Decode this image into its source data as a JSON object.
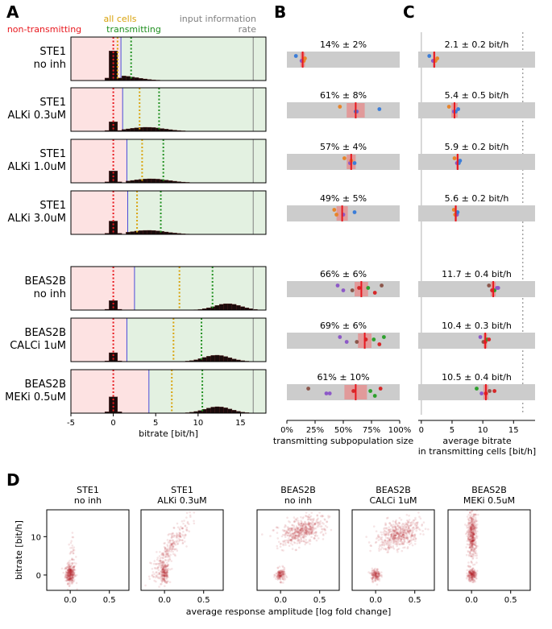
{
  "panel_letters": {
    "a": "A",
    "b": "B",
    "c": "C",
    "d": "D"
  },
  "legend": {
    "non_transmitting": "non-transmitting",
    "all_cells": "all cells",
    "transmitting": "transmitting",
    "input_information_line1": "input information",
    "input_information_line2": "rate"
  },
  "colors": {
    "non_transmitting": "#e8181e",
    "all_cells": "#d9a20b",
    "transmitting": "#1f8f1f",
    "input_rate": "#7f7f7f",
    "bg_red": "#fde2e2",
    "bg_green": "#e3f1e1",
    "gray_band": "#cccccc",
    "blue_line": "#4b4bd8",
    "hist": "#1a0b0b",
    "scatter": "#b5202a"
  },
  "chart_data": [
    {
      "id": "A",
      "type": "bar",
      "xlabel": "bitrate [bit/h]",
      "xlim": [
        -5,
        18
      ],
      "xticks": [
        "-5",
        "0",
        "5",
        "10",
        "15"
      ],
      "xtick_values": [
        -5,
        0,
        5,
        10,
        15
      ],
      "input_rate": 16.5,
      "rows": [
        {
          "label1": "STE1",
          "label2": "no inh",
          "threshold": 0.9,
          "non_mean": 0.0,
          "all_mean": 0.5,
          "trans_mean": 2.1,
          "hist_peak": 1.0
        },
        {
          "label1": "STE1",
          "label2": "ALKi 0.3uM",
          "threshold": 1.1,
          "non_mean": 0.0,
          "all_mean": 3.1,
          "trans_mean": 5.4,
          "hist_peak": 0.32
        },
        {
          "label1": "STE1",
          "label2": "ALKi 1.0uM",
          "threshold": 1.6,
          "non_mean": 0.0,
          "all_mean": 3.4,
          "trans_mean": 5.9,
          "hist_peak": 0.4
        },
        {
          "label1": "STE1",
          "label2": "ALKi 3.0uM",
          "threshold": 1.7,
          "non_mean": 0.0,
          "all_mean": 2.8,
          "trans_mean": 5.6,
          "hist_peak": 0.45
        },
        {
          "label1": "BEAS2B",
          "label2": "no inh",
          "threshold": 2.5,
          "non_mean": 0.0,
          "all_mean": 7.8,
          "trans_mean": 11.7,
          "hist_peak": 0.32
        },
        {
          "label1": "BEAS2B",
          "label2": "CALCi 1uM",
          "threshold": 1.6,
          "non_mean": 0.0,
          "all_mean": 7.1,
          "trans_mean": 10.4,
          "hist_peak": 0.3
        },
        {
          "label1": "BEAS2B",
          "label2": "MEKi 0.5uM",
          "threshold": 4.2,
          "non_mean": 0.0,
          "all_mean": 6.9,
          "trans_mean": 10.5,
          "hist_peak": 0.55
        }
      ]
    },
    {
      "id": "B",
      "type": "scatter",
      "xlabel": "transmitting subpopulation size",
      "xlim": [
        0,
        100
      ],
      "xticks": [
        "0%",
        "25%",
        "50%",
        "75%",
        "100%"
      ],
      "xtick_values": [
        0,
        25,
        50,
        75,
        100
      ],
      "rows": [
        {
          "text": "14% ± 2%",
          "mean": 14,
          "ci": 2,
          "points": [
            {
              "v": 8,
              "c": "#3b7dd8"
            },
            {
              "v": 13,
              "c": "#8d59c7"
            },
            {
              "v": 15,
              "c": "#e8842a"
            },
            {
              "v": 16,
              "c": "#e8842a"
            }
          ]
        },
        {
          "text": "61% ± 8%",
          "mean": 61,
          "ci": 8,
          "points": [
            {
              "v": 47,
              "c": "#e8842a"
            },
            {
              "v": 62,
              "c": "#8d59c7"
            },
            {
              "v": 61,
              "c": "#3b7dd8"
            },
            {
              "v": 82,
              "c": "#3b7dd8"
            }
          ]
        },
        {
          "text": "57% ± 4%",
          "mean": 57,
          "ci": 4,
          "points": [
            {
              "v": 51,
              "c": "#e8842a"
            },
            {
              "v": 56,
              "c": "#8d59c7"
            },
            {
              "v": 60,
              "c": "#3b7dd8"
            },
            {
              "v": 57,
              "c": "#e8842a"
            }
          ]
        },
        {
          "text": "49% ± 5%",
          "mean": 49,
          "ci": 5,
          "points": [
            {
              "v": 42,
              "c": "#e8842a"
            },
            {
              "v": 44,
              "c": "#e8842a"
            },
            {
              "v": 50,
              "c": "#8d59c7"
            },
            {
              "v": 60,
              "c": "#3b7dd8"
            }
          ]
        },
        {
          "text": "66% ± 6%",
          "mean": 66,
          "ci": 6,
          "points": [
            {
              "v": 45,
              "c": "#8d59c7"
            },
            {
              "v": 50,
              "c": "#8d59c7"
            },
            {
              "v": 58,
              "c": "#8c564b"
            },
            {
              "v": 64,
              "c": "#d62728"
            },
            {
              "v": 72,
              "c": "#2ca02c"
            },
            {
              "v": 78,
              "c": "#d62728"
            },
            {
              "v": 84,
              "c": "#8c564b"
            }
          ]
        },
        {
          "text": "69% ± 6%",
          "mean": 69,
          "ci": 6,
          "points": [
            {
              "v": 47,
              "c": "#8d59c7"
            },
            {
              "v": 53,
              "c": "#8d59c7"
            },
            {
              "v": 62,
              "c": "#8c564b"
            },
            {
              "v": 70,
              "c": "#d62728"
            },
            {
              "v": 77,
              "c": "#2ca02c"
            },
            {
              "v": 82,
              "c": "#d62728"
            },
            {
              "v": 86,
              "c": "#2ca02c"
            }
          ]
        },
        {
          "text": "61% ± 10%",
          "mean": 61,
          "ci": 10,
          "points": [
            {
              "v": 19,
              "c": "#8c564b"
            },
            {
              "v": 35,
              "c": "#8d59c7"
            },
            {
              "v": 38,
              "c": "#8d59c7"
            },
            {
              "v": 59,
              "c": "#d62728"
            },
            {
              "v": 74,
              "c": "#2ca02c"
            },
            {
              "v": 78,
              "c": "#2ca02c"
            },
            {
              "v": 83,
              "c": "#d62728"
            }
          ]
        }
      ]
    },
    {
      "id": "C",
      "type": "scatter",
      "xlabel_line1": "average bitrate",
      "xlabel_line2": "in transmitting cells [bit/h]",
      "xlim": [
        -0.5,
        18.5
      ],
      "xticks": [
        "0",
        "5",
        "10",
        "15"
      ],
      "xtick_values": [
        0,
        5,
        10,
        15
      ],
      "input_rate": 16.5,
      "rows": [
        {
          "text": "2.1 ± 0.2 bit/h",
          "mean": 2.1,
          "ci": 0.2,
          "points": [
            {
              "v": 1.3,
              "c": "#3b7dd8"
            },
            {
              "v": 1.9,
              "c": "#8d59c7"
            },
            {
              "v": 2.3,
              "c": "#e8842a"
            },
            {
              "v": 2.6,
              "c": "#e8842a"
            }
          ]
        },
        {
          "text": "5.4 ± 0.5 bit/h",
          "mean": 5.4,
          "ci": 0.5,
          "points": [
            {
              "v": 4.5,
              "c": "#e8842a"
            },
            {
              "v": 5.3,
              "c": "#8d59c7"
            },
            {
              "v": 5.6,
              "c": "#3b7dd8"
            },
            {
              "v": 6.0,
              "c": "#3b7dd8"
            }
          ]
        },
        {
          "text": "5.9 ± 0.2 bit/h",
          "mean": 5.9,
          "ci": 0.2,
          "points": [
            {
              "v": 5.4,
              "c": "#e8842a"
            },
            {
              "v": 5.8,
              "c": "#8d59c7"
            },
            {
              "v": 6.1,
              "c": "#3b7dd8"
            },
            {
              "v": 6.3,
              "c": "#3b7dd8"
            }
          ]
        },
        {
          "text": "5.6 ± 0.2 bit/h",
          "mean": 5.6,
          "ci": 0.2,
          "points": [
            {
              "v": 5.3,
              "c": "#e8842a"
            },
            {
              "v": 5.5,
              "c": "#e8842a"
            },
            {
              "v": 5.8,
              "c": "#8d59c7"
            },
            {
              "v": 5.9,
              "c": "#3b7dd8"
            }
          ]
        },
        {
          "text": "11.7 ± 0.4 bit/h",
          "mean": 11.7,
          "ci": 0.4,
          "points": [
            {
              "v": 11.0,
              "c": "#8c564b"
            },
            {
              "v": 11.5,
              "c": "#d62728"
            },
            {
              "v": 11.9,
              "c": "#2ca02c"
            },
            {
              "v": 12.3,
              "c": "#8d59c7"
            },
            {
              "v": 12.5,
              "c": "#8d59c7"
            }
          ]
        },
        {
          "text": "10.4 ± 0.3 bit/h",
          "mean": 10.4,
          "ci": 0.3,
          "points": [
            {
              "v": 9.6,
              "c": "#8d59c7"
            },
            {
              "v": 10.1,
              "c": "#8c564b"
            },
            {
              "v": 10.4,
              "c": "#d62728"
            },
            {
              "v": 10.7,
              "c": "#2ca02c"
            },
            {
              "v": 11.0,
              "c": "#d62728"
            }
          ]
        },
        {
          "text": "10.5 ± 0.4 bit/h",
          "mean": 10.5,
          "ci": 0.4,
          "points": [
            {
              "v": 9.0,
              "c": "#2ca02c"
            },
            {
              "v": 9.8,
              "c": "#8d59c7"
            },
            {
              "v": 10.5,
              "c": "#d62728"
            },
            {
              "v": 11.1,
              "c": "#8c564b"
            },
            {
              "v": 11.9,
              "c": "#d62728"
            }
          ]
        }
      ]
    },
    {
      "id": "D",
      "type": "scatter",
      "xlabel": "average response amplitude [log fold change]",
      "ylabel": "bitrate [bit/h]",
      "xlim": [
        -0.3,
        0.75
      ],
      "ylim": [
        -4,
        17
      ],
      "xticks": [
        "0.0",
        "0.5"
      ],
      "xtick_values": [
        0.0,
        0.5
      ],
      "yticks": [
        "0",
        "10"
      ],
      "ytick_values": [
        0,
        10
      ],
      "plots": [
        {
          "title1": "STE1",
          "title2": "no inh"
        },
        {
          "title1": "STE1",
          "title2": "ALKi 0.3uM"
        },
        {
          "title1": "BEAS2B",
          "title2": "no inh"
        },
        {
          "title1": "BEAS2B",
          "title2": "CALCi 1uM"
        },
        {
          "title1": "BEAS2B",
          "title2": "MEKi 0.5uM"
        }
      ]
    }
  ]
}
